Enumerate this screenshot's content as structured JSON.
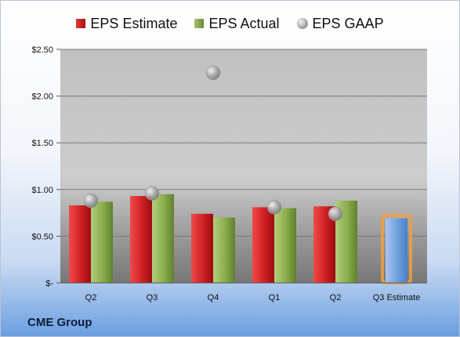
{
  "company": "CME Group",
  "colors": {
    "estimate": "#c21e22",
    "actual": "#86a84a",
    "gaap": "#a3a3a3",
    "estimate_bar": "#6f9fdc",
    "estimate_glow": "#f0a040"
  },
  "chart_data": {
    "type": "bar",
    "categories": [
      "Q2",
      "Q3",
      "Q4",
      "Q1",
      "Q2",
      "Q3 Estimate"
    ],
    "series": [
      {
        "name": "EPS Estimate",
        "values": [
          0.83,
          0.93,
          0.74,
          0.81,
          0.82,
          0.69
        ]
      },
      {
        "name": "EPS Actual",
        "values": [
          0.87,
          0.95,
          0.7,
          0.8,
          0.88,
          null
        ]
      },
      {
        "name": "EPS GAAP",
        "values": [
          0.88,
          0.96,
          2.25,
          0.81,
          0.74,
          null
        ]
      }
    ],
    "yticks": [
      "$-",
      "$0.50",
      "$1.00",
      "$1.50",
      "$2.00",
      "$2.50"
    ],
    "ylim": [
      0,
      2.5
    ],
    "grid": true,
    "legend_position": "top"
  }
}
